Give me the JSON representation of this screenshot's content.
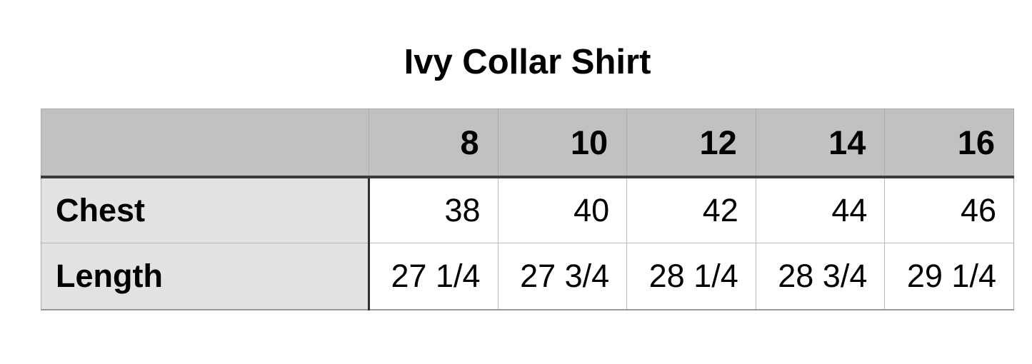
{
  "title": "Ivy Collar Shirt",
  "table": {
    "header": {
      "corner": "",
      "sizes": [
        "8",
        "10",
        "12",
        "14",
        "16"
      ]
    },
    "rows": [
      {
        "label": "Chest",
        "values": [
          "38",
          "40",
          "42",
          "44",
          "46"
        ]
      },
      {
        "label": "Length",
        "values": [
          "27 1/4",
          "27 3/4",
          "28 1/4",
          "28 3/4",
          "29 1/4"
        ]
      }
    ]
  },
  "chart_data": {
    "type": "table",
    "title": "Ivy Collar Shirt",
    "columns": [
      "8",
      "10",
      "12",
      "14",
      "16"
    ],
    "rows": [
      {
        "label": "Chest",
        "values": [
          38,
          40,
          42,
          44,
          46
        ]
      },
      {
        "label": "Length",
        "values": [
          "27 1/4",
          "27 3/4",
          "28 1/4",
          "28 3/4",
          "29 1/4"
        ]
      }
    ],
    "layout": {
      "title_position": "top-center",
      "header_alignment": "right",
      "value_alignment": "right",
      "label_alignment": "left"
    }
  },
  "colors": {
    "background": "#ffffff",
    "header_bg": "#c0c2c0",
    "label_bg": "#e2e2e2",
    "cell_bg": "#ffffff",
    "divider_dark": "#3a3a3a",
    "grid_light": "#b9b9b9",
    "outer_border": "#ababab",
    "text": "#000000"
  }
}
